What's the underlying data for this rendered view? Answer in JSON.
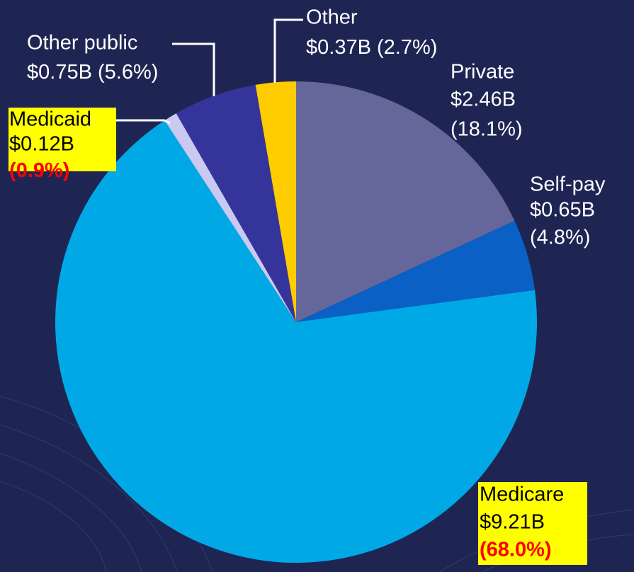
{
  "chart_data": {
    "type": "pie",
    "categories": [
      "Private",
      "Self-pay",
      "Medicare",
      "Medicaid",
      "Other public",
      "Other"
    ],
    "amount_labels": [
      "$2.46B",
      "$0.65B",
      "$9.21B",
      "$0.12B",
      "$0.75B",
      "$0.37B"
    ],
    "values": [
      18.1,
      4.8,
      68.0,
      0.9,
      5.6,
      2.7
    ],
    "value_labels": [
      "(18.1%)",
      "(4.8%)",
      "(68.0%)",
      "(0.9%)",
      "(5.6%)",
      "(2.7%)"
    ],
    "colors": [
      "#65679a",
      "#0a60c4",
      "#00a9e6",
      "#c9c9f2",
      "#34349a",
      "#ffcc00"
    ]
  }
}
